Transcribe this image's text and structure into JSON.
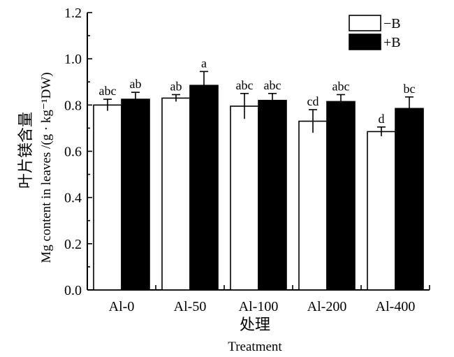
{
  "chart_data": {
    "type": "bar",
    "categories": [
      "Al-0",
      "Al-50",
      "Al-100",
      "Al-200",
      "Al-400"
    ],
    "series": [
      {
        "name": "−B",
        "color": "#ffffff",
        "values": [
          0.8,
          0.83,
          0.795,
          0.73,
          0.685
        ],
        "errors": [
          0.025,
          0.015,
          0.055,
          0.05,
          0.02
        ],
        "letters": [
          "abc",
          "ab",
          "abc",
          "cd",
          "d"
        ]
      },
      {
        "name": "+B",
        "color": "#000000",
        "values": [
          0.825,
          0.885,
          0.82,
          0.815,
          0.785
        ],
        "errors": [
          0.03,
          0.06,
          0.03,
          0.03,
          0.05
        ],
        "letters": [
          "ab",
          "a",
          "abc",
          "abc",
          "bc"
        ]
      }
    ],
    "ylim": [
      0,
      1.2
    ],
    "yticks": [
      "0.0",
      "0.2",
      "0.4",
      "0.6",
      "0.8",
      "1.0",
      "1.2"
    ],
    "ylabel_cn": "叶片镁含量",
    "ylabel_en": "Mg content in leaves /(g · kg⁻¹DW)",
    "xlabel_cn": "处理",
    "xlabel_en": "Treatment",
    "legend_position": "top-right",
    "grid": false
  }
}
